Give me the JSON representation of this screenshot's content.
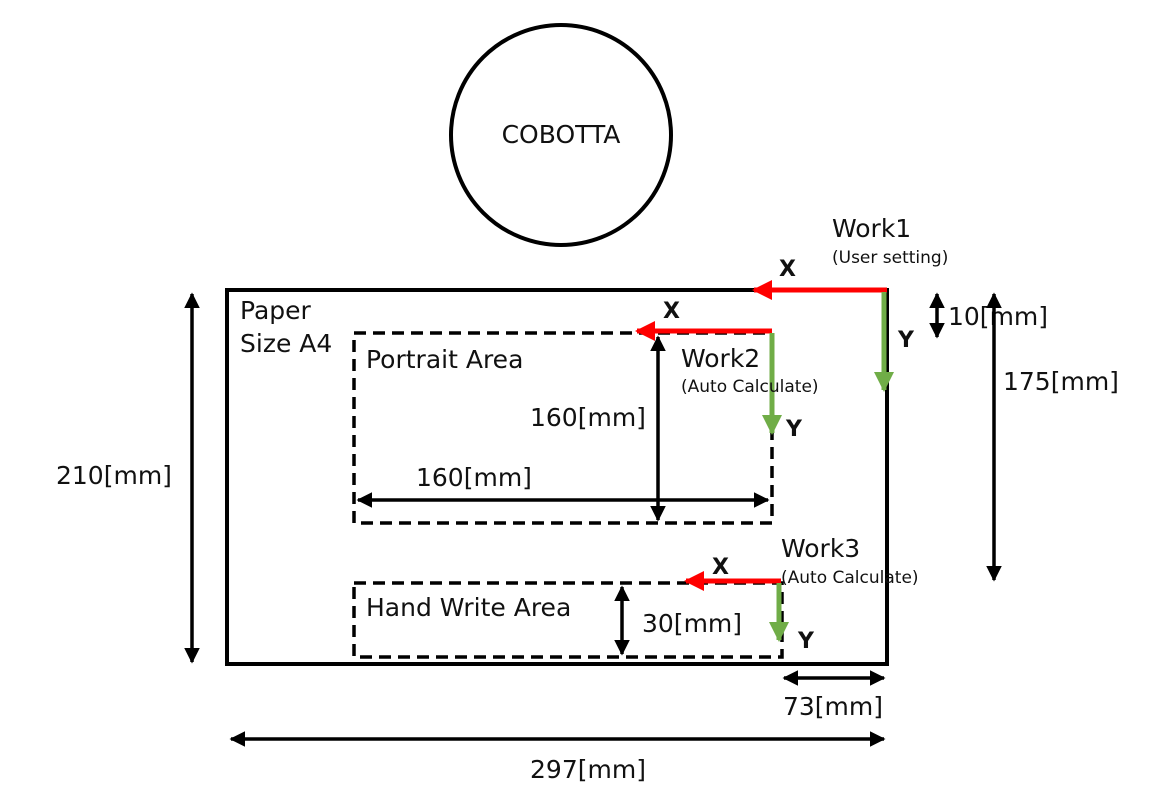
{
  "robot": {
    "label": "COBOTTA"
  },
  "paper": {
    "line1": "Paper",
    "line2": "Size A4"
  },
  "areas": {
    "portrait": "Portrait Area",
    "handwrite": "Hand Write Area"
  },
  "works": {
    "work1": {
      "title": "Work1",
      "note": "(User setting)"
    },
    "work2": {
      "title": "Work2",
      "note": "(Auto Calculate)"
    },
    "work3": {
      "title": "Work3",
      "note": "(Auto Calculate)"
    }
  },
  "axes": {
    "x": "X",
    "y": "Y"
  },
  "dimensions": {
    "paper_height": "210[mm]",
    "paper_width": "297[mm]",
    "work1_offset_y": "10[mm]",
    "work3_offset_y": "175[mm]",
    "work3_offset_x": "73[mm]",
    "portrait_height": "160[mm]",
    "portrait_width": "160[mm]",
    "handwrite_height": "30[mm]"
  },
  "colors": {
    "x_axis": "#ff0000",
    "y_axis": "#70ad47",
    "line": "#000000"
  }
}
